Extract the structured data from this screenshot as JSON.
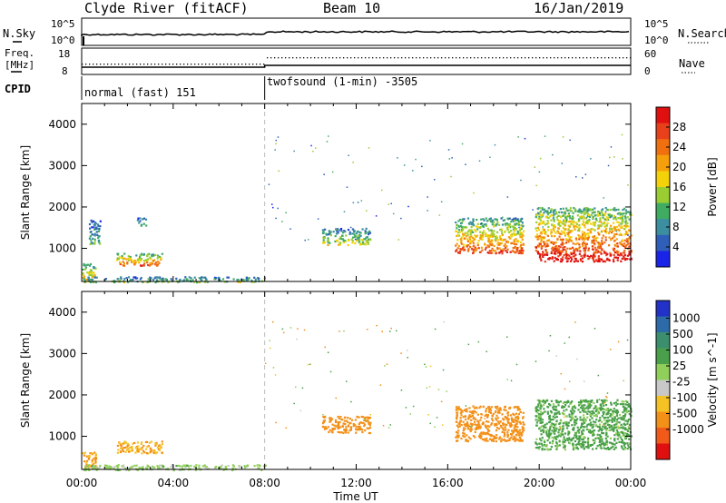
{
  "header": {
    "station": "Clyde River (fitACF)",
    "beam": "Beam 10",
    "date": "16/Jan/2019"
  },
  "noise_panel": {
    "left_label": "N.Sky",
    "right_label": "N.Search",
    "left_ticks": [
      "10^5",
      "10^0"
    ],
    "right_ticks": [
      "10^5",
      "10^0"
    ]
  },
  "freq_panel": {
    "left_label_1": "Freq.",
    "left_label_2": "[MHz]",
    "right_label": "Nave",
    "left_ticks": [
      "18",
      "8"
    ],
    "right_ticks": [
      "60",
      "0"
    ]
  },
  "cpid": {
    "label": "CPID",
    "segments": [
      "normal (fast) 151",
      "twofsound (1-min) -3505"
    ]
  },
  "x_axis": {
    "label": "Time UT",
    "ticks": [
      "00:00",
      "04:00",
      "08:00",
      "12:00",
      "16:00",
      "20:00",
      "00:00"
    ]
  },
  "colors": {
    "power": [
      "#1a24e8",
      "#2f5fb8",
      "#3b8fa0",
      "#40ac62",
      "#9acd32",
      "#f4d20a",
      "#f5a00a",
      "#f07010",
      "#e8401a",
      "#e01010"
    ],
    "velocity": [
      "#e01010",
      "#f25a1a",
      "#f39018",
      "#f5c226",
      "#c8c8c8",
      "#8fcf5a",
      "#4aa04a",
      "#3c8f6e",
      "#2d6aa8",
      "#2232c8"
    ]
  },
  "chart_data": [
    {
      "type": "heatmap",
      "title": "",
      "xlabel": "Time UT",
      "ylabel": "Slant Range [km]",
      "xlim": [
        "00:00",
        "24:00"
      ],
      "ylim": [
        200,
        4500
      ],
      "y_ticks": [
        "1000",
        "2000",
        "3000",
        "4000"
      ],
      "colorbar_label": "Power [dB]",
      "colorbar_ticks": [
        "4",
        "8",
        "12",
        "16",
        "20",
        "24",
        "28"
      ],
      "colorbar_range": [
        0,
        32
      ],
      "scatter_regions": [
        {
          "t0": 0.0,
          "t1": 0.6,
          "r0": 250,
          "r1": 650,
          "value": 18
        },
        {
          "t0": 0.3,
          "t1": 0.8,
          "r0": 1100,
          "r1": 1700,
          "value": 10
        },
        {
          "t0": 1.5,
          "t1": 3.5,
          "r0": 600,
          "r1": 900,
          "value": 22
        },
        {
          "t0": 0.0,
          "t1": 8.0,
          "r0": 200,
          "r1": 330,
          "value": 12
        },
        {
          "t0": 2.4,
          "t1": 2.8,
          "r0": 1550,
          "r1": 1750,
          "value": 10
        },
        {
          "t0": 10.5,
          "t1": 12.6,
          "r0": 1100,
          "r1": 1500,
          "value": 14
        },
        {
          "t0": 16.3,
          "t1": 19.3,
          "r0": 900,
          "r1": 1750,
          "value": 22
        },
        {
          "t0": 19.8,
          "t1": 24.0,
          "r0": 700,
          "r1": 2000,
          "value": 26
        }
      ]
    },
    {
      "type": "heatmap",
      "title": "",
      "xlabel": "Time UT",
      "ylabel": "Slant Range [km]",
      "xlim": [
        "00:00",
        "24:00"
      ],
      "ylim": [
        200,
        4500
      ],
      "y_ticks": [
        "1000",
        "2000",
        "3000",
        "4000"
      ],
      "colorbar_label": "Velocity [m s^-1]",
      "colorbar_ticks": [
        "1000",
        "500",
        "100",
        "25",
        "-25",
        "-100",
        "-500",
        "-1000"
      ],
      "scatter_regions": [
        {
          "t0": 0.0,
          "t1": 0.6,
          "r0": 250,
          "r1": 650,
          "value": -100
        },
        {
          "t0": 1.5,
          "t1": 3.5,
          "r0": 600,
          "r1": 900,
          "value": -100
        },
        {
          "t0": 0.0,
          "t1": 8.0,
          "r0": 200,
          "r1": 330,
          "value": 50
        },
        {
          "t0": 10.5,
          "t1": 12.6,
          "r0": 1100,
          "r1": 1500,
          "value": -300
        },
        {
          "t0": 16.3,
          "t1": 19.3,
          "r0": 900,
          "r1": 1750,
          "value": -300
        },
        {
          "t0": 19.8,
          "t1": 24.0,
          "r0": 700,
          "r1": 1900,
          "value": 150
        }
      ]
    }
  ]
}
